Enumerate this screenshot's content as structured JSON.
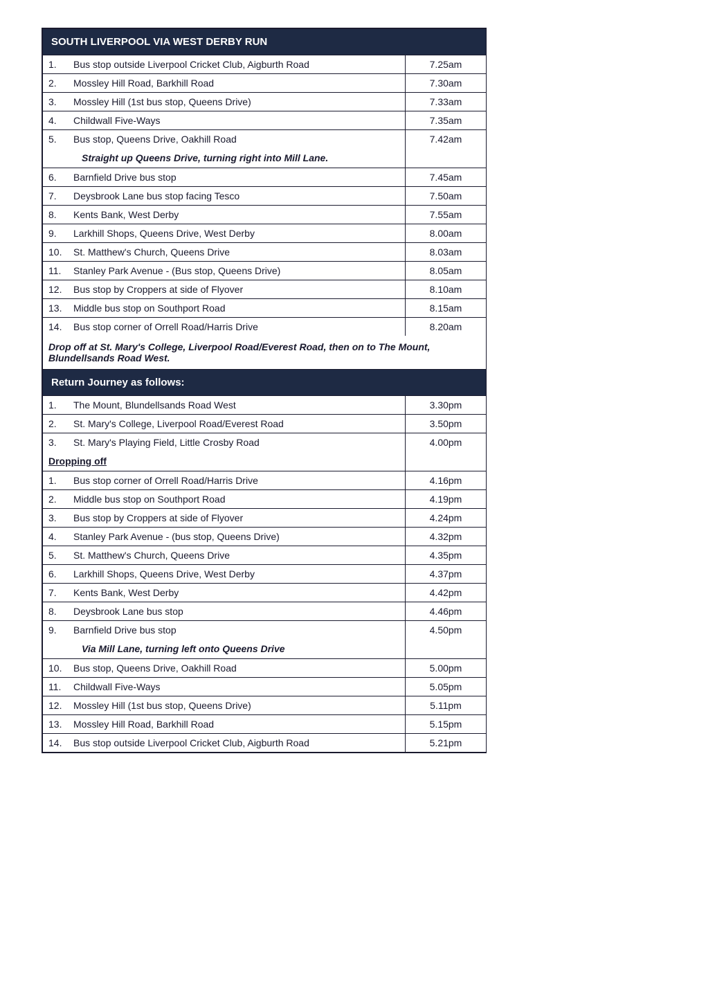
{
  "title": "SOUTH LIVERPOOL VIA WEST DERBY RUN",
  "outbound": [
    {
      "n": "1.",
      "stop": "Bus stop outside Liverpool Cricket Club, Aigburth Road",
      "time": "7.25am"
    },
    {
      "n": "2.",
      "stop": "Mossley Hill Road, Barkhill Road",
      "time": "7.30am"
    },
    {
      "n": "3.",
      "stop": "Mossley Hill (1st bus stop, Queens Drive)",
      "time": "7.33am"
    },
    {
      "n": "4.",
      "stop": "Childwall Five-Ways",
      "time": "7.35am"
    },
    {
      "n": "5.",
      "stop": "Bus stop, Queens Drive, Oakhill Road",
      "time": "7.42am"
    }
  ],
  "outbound_note1": "Straight up Queens Drive, turning right into Mill Lane.",
  "outbound2": [
    {
      "n": "6.",
      "stop": "Barnfield Drive bus stop",
      "time": "7.45am"
    },
    {
      "n": "7.",
      "stop": "Deysbrook Lane bus stop facing Tesco",
      "time": "7.50am"
    },
    {
      "n": "8.",
      "stop": "Kents Bank, West Derby",
      "time": "7.55am"
    },
    {
      "n": "9.",
      "stop": "Larkhill Shops, Queens Drive, West Derby",
      "time": "8.00am"
    },
    {
      "n": "10.",
      "stop": "St. Matthew's Church, Queens Drive",
      "time": "8.03am"
    },
    {
      "n": "11.",
      "stop": "Stanley Park Avenue - (Bus stop, Queens Drive)",
      "time": "8.05am"
    },
    {
      "n": "12.",
      "stop": "Bus stop by Croppers at side of Flyover",
      "time": "8.10am"
    },
    {
      "n": "13.",
      "stop": "Middle bus stop on Southport Road",
      "time": "8.15am"
    },
    {
      "n": "14.",
      "stop": "Bus stop corner of Orrell Road/Harris Drive",
      "time": "8.20am"
    }
  ],
  "dropoff_note": "Drop off at St. Mary's College, Liverpool Road/Everest Road, then on to The Mount, Blundellsands Road West.",
  "return_title": "Return Journey as follows:",
  "return1": [
    {
      "n": "1.",
      "stop": "The Mount, Blundellsands Road West",
      "time": "3.30pm"
    },
    {
      "n": "2.",
      "stop": "St. Mary's College, Liverpool Road/Everest Road",
      "time": "3.50pm"
    },
    {
      "n": "3.",
      "stop": "St. Mary's Playing Field, Little Crosby Road",
      "time": "4.00pm"
    }
  ],
  "dropping_label": "Dropping off",
  "return2": [
    {
      "n": "1.",
      "stop": "Bus stop corner of Orrell Road/Harris Drive",
      "time": "4.16pm"
    },
    {
      "n": "2.",
      "stop": "Middle bus stop on Southport Road",
      "time": "4.19pm"
    },
    {
      "n": "3.",
      "stop": "Bus stop by Croppers at side of Flyover",
      "time": "4.24pm"
    },
    {
      "n": "4.",
      "stop": "Stanley Park Avenue - (bus stop, Queens Drive)",
      "time": "4.32pm"
    },
    {
      "n": "5.",
      "stop": "St. Matthew's Church, Queens Drive",
      "time": "4.35pm"
    },
    {
      "n": "6.",
      "stop": "Larkhill Shops, Queens Drive, West Derby",
      "time": "4.37pm"
    },
    {
      "n": "7.",
      "stop": "Kents Bank, West Derby",
      "time": "4.42pm"
    },
    {
      "n": "8.",
      "stop": "Deysbrook Lane bus stop",
      "time": "4.46pm"
    },
    {
      "n": "9.",
      "stop": "Barnfield Drive bus stop",
      "time": "4.50pm"
    }
  ],
  "return_note": "Via Mill Lane, turning left onto Queens Drive",
  "return3": [
    {
      "n": "10.",
      "stop": "Bus stop, Queens Drive, Oakhill Road",
      "time": "5.00pm"
    },
    {
      "n": "11.",
      "stop": "Childwall Five-Ways",
      "time": "5.05pm"
    },
    {
      "n": "12.",
      "stop": "Mossley Hill (1st bus stop, Queens Drive)",
      "time": "5.11pm"
    },
    {
      "n": "13.",
      "stop": "Mossley Hill Road, Barkhill Road",
      "time": "5.15pm"
    },
    {
      "n": "14.",
      "stop": "Bus stop outside Liverpool Cricket Club, Aigburth Road",
      "time": "5.21pm"
    }
  ],
  "colors": {
    "header_bg": "#1e2a44",
    "header_text": "#ffffff",
    "border": "#1a1a2e",
    "text": "#1a1a2e"
  }
}
